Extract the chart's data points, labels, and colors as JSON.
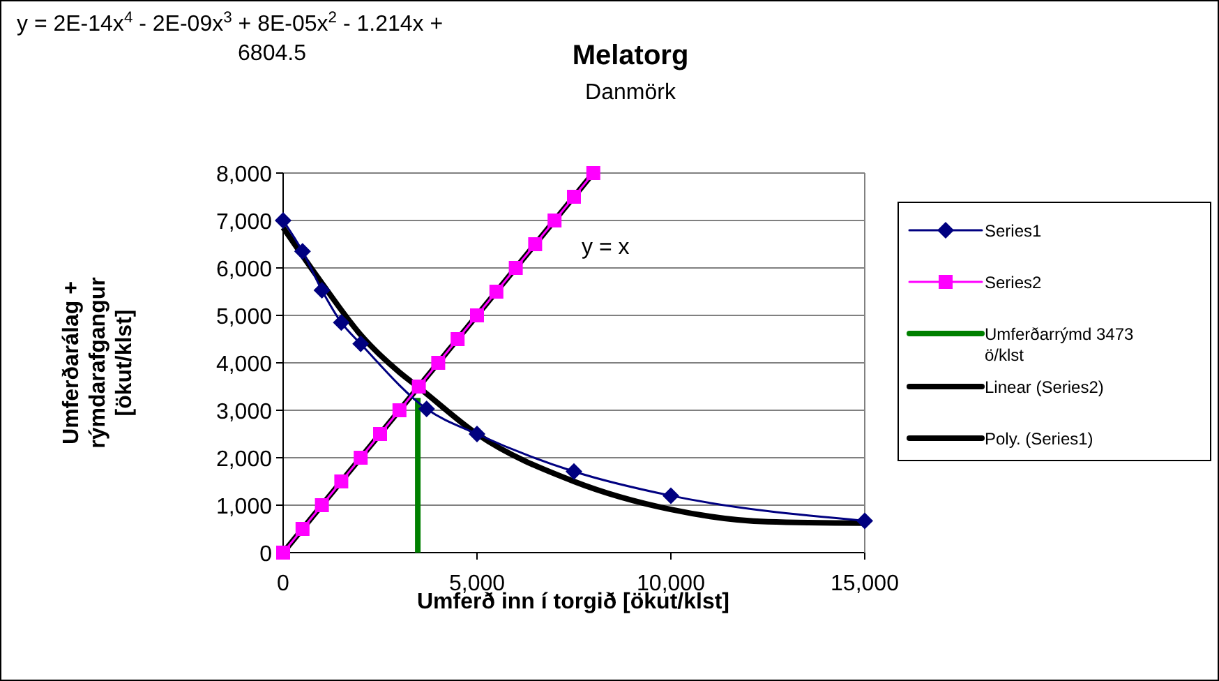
{
  "chart_data": {
    "type": "line",
    "title": "Melatorg",
    "subtitle": "Danmörk",
    "xlabel": "Umferð inn í torgið [ökut/klst]",
    "ylabel": "Umferðarálag + rýmdarafgangur [ökut/klst]",
    "xlim": [
      0,
      15000
    ],
    "xticks": [
      0,
      {
        "value": 5000,
        "label": "5,000"
      },
      {
        "value": 10000,
        "label": "10,000"
      },
      {
        "value": 15000,
        "label": "15,000"
      }
    ],
    "ylim": [
      0,
      8000
    ],
    "yticks": [
      0,
      {
        "value": 1000,
        "label": "1,000"
      },
      {
        "value": 2000,
        "label": "2,000"
      },
      {
        "value": 3000,
        "label": "3,000"
      },
      {
        "value": 4000,
        "label": "4,000"
      },
      {
        "value": 5000,
        "label": "5,000"
      },
      {
        "value": 6000,
        "label": "6,000"
      },
      {
        "value": 7000,
        "label": "7,000"
      },
      {
        "value": 8000,
        "label": "8,000"
      }
    ],
    "grid": "y",
    "legend": "right",
    "annotations": [
      "y = 2E-14x$^{4}$ - 2E-09x$^{3}$ + 8E-05x$^{2}$ - 1.214x + 6804.5",
      "y = x"
    ],
    "series": [
      {
        "name": "Series1",
        "color": "#000080",
        "marker": "diamond",
        "x": [
          0,
          500,
          1000,
          1500,
          2000,
          3700,
          5000,
          7500,
          10000,
          15000
        ],
        "values": [
          7000,
          6350,
          5530,
          4850,
          4400,
          3030,
          2500,
          1710,
          1200,
          670
        ]
      },
      {
        "name": "Series2",
        "color": "#ff00ff",
        "marker": "square",
        "x": [
          0,
          500,
          1000,
          1500,
          2000,
          2500,
          3000,
          3500,
          4000,
          4500,
          5000,
          5500,
          6000,
          6500,
          7000,
          7500,
          8000
        ],
        "values": [
          0,
          500,
          1000,
          1500,
          2000,
          2500,
          3000,
          3500,
          4000,
          4500,
          5000,
          5500,
          6000,
          6500,
          7000,
          7500,
          8000
        ]
      },
      {
        "name": "Umferðarrýmd 3473 ö/klst",
        "color": "#008000",
        "marker": "none",
        "x": [
          3473,
          3473
        ],
        "values": [
          0,
          3260
        ]
      },
      {
        "name": "Linear (Series2)",
        "color": "#000000",
        "marker": "none",
        "x": [
          0,
          8000
        ],
        "values": [
          0,
          8000
        ]
      },
      {
        "name": "Poly. (Series1)",
        "color": "#000000",
        "marker": "none",
        "x": [
          0,
          1000,
          2000,
          3000,
          3500,
          5000,
          7500,
          10000,
          12500,
          15000
        ],
        "values": [
          6850,
          5680,
          4590,
          3800,
          3480,
          2500,
          1500,
          910,
          650,
          620
        ]
      }
    ]
  }
}
